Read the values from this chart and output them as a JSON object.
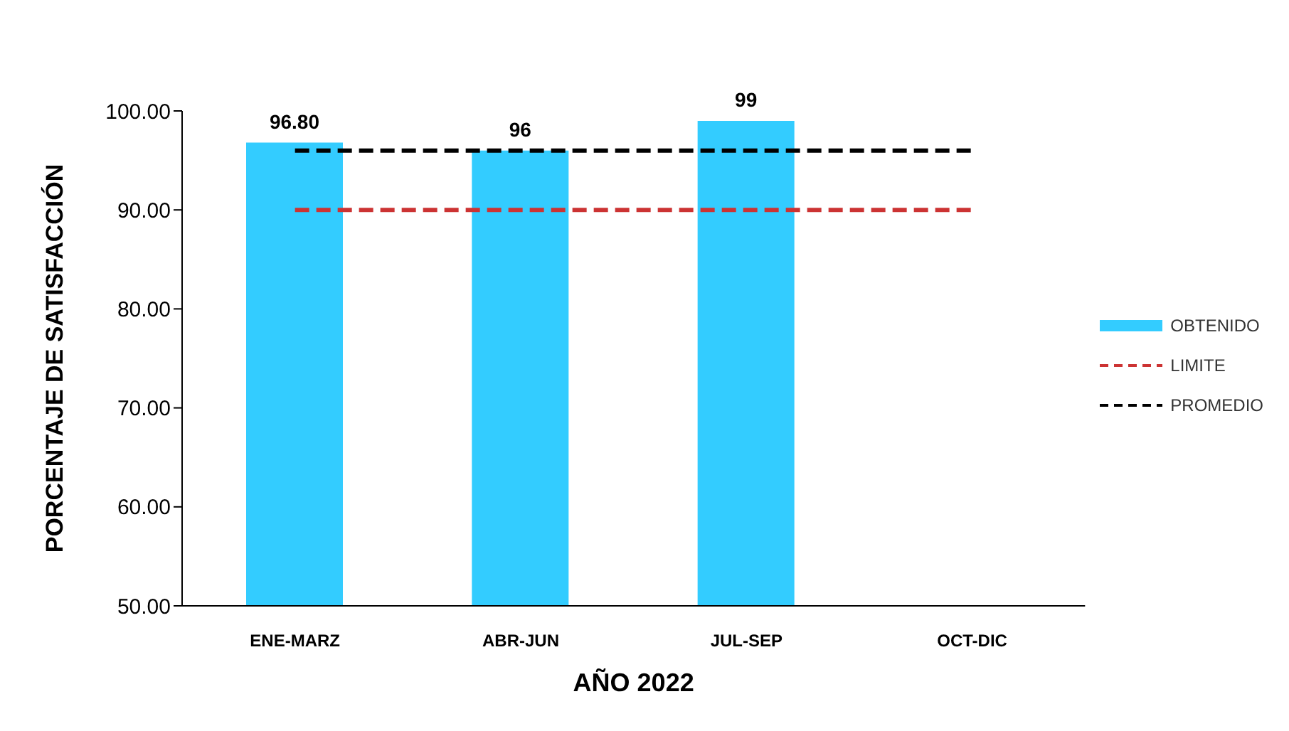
{
  "chart_data": {
    "type": "bar",
    "categories": [
      "ENE-MARZ",
      "ABR-JUN",
      "JUL-SEP",
      "OCT-DIC"
    ],
    "xlabel": "AÑO 2022",
    "ylabel": "PORCENTAJE DE SATISFACCIÓN",
    "series": [
      {
        "name": "OBTENIDO",
        "color": "#33ccff",
        "values": [
          96.8,
          96,
          99,
          null
        ],
        "value_labels": [
          "96.80",
          "96",
          "99",
          null
        ]
      },
      {
        "name": "LIMITE",
        "type": "line",
        "color": "#cc3333",
        "line_style": "dashed",
        "values": [
          90,
          90,
          90,
          90
        ]
      },
      {
        "name": "PROMEDIO",
        "type": "line",
        "color": "#000000",
        "line_style": "dashed",
        "values": [
          96,
          96,
          96,
          96
        ]
      }
    ],
    "ylim": [
      50,
      100
    ],
    "yticks": [
      {
        "value": 50,
        "label": "50.00"
      },
      {
        "value": 60,
        "label": "60.00"
      },
      {
        "value": 70,
        "label": "70.00"
      },
      {
        "value": 80,
        "label": "80.00"
      },
      {
        "value": 90,
        "label": "90.00"
      },
      {
        "value": 100,
        "label": "100.00"
      }
    ],
    "legend": "right",
    "marker": "none"
  }
}
